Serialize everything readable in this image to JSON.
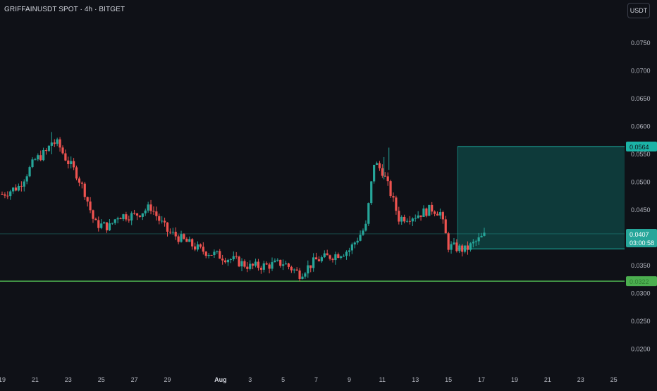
{
  "header": {
    "title": "GRIFFAINUSDT SPOT · 4h · BITGET",
    "currency_button": "USDT"
  },
  "colors": {
    "background": "#0f1117",
    "up": "#26a69a",
    "down": "#ef5350",
    "support_line": "#4caf50",
    "target_zone_fill": "#0f5c58",
    "target_zone_border": "#1bb3a6"
  },
  "price_labels": {
    "target": "0.0564",
    "current": "0.0407",
    "countdown": "03:00:58",
    "support": "0.0322"
  },
  "chart_data": {
    "type": "candlestick",
    "title": "GRIFFAINUSDT SPOT · 4h · BITGET",
    "y_axis": {
      "ticks": [
        "0.0750",
        "0.0700",
        "0.0650",
        "0.0600",
        "0.0550",
        "0.0500",
        "0.0450",
        "0.0350",
        "0.0300",
        "0.0250",
        "0.0200"
      ],
      "range": [
        0.0172,
        0.08
      ]
    },
    "x_axis": {
      "ticks": [
        "19",
        "21",
        "23",
        "25",
        "27",
        "29",
        "Aug",
        "3",
        "5",
        "7",
        "9",
        "11",
        "13",
        "15",
        "17",
        "19",
        "21",
        "23",
        "25"
      ]
    },
    "price_path": [
      {
        "d": "Jul 19",
        "p": 0.0478
      },
      {
        "d": "Jul 20",
        "p": 0.0492
      },
      {
        "d": "Jul 21",
        "p": 0.054
      },
      {
        "d": "Jul 21.7",
        "p": 0.0555
      },
      {
        "d": "Jul 22",
        "p": 0.0572
      },
      {
        "d": "Jul 22.4",
        "p": 0.0568
      },
      {
        "d": "Jul 22.8",
        "p": 0.0545
      },
      {
        "d": "Jul 23.5",
        "p": 0.0515
      },
      {
        "d": "Jul 24",
        "p": 0.0482
      },
      {
        "d": "Jul 24.6",
        "p": 0.0425
      },
      {
        "d": "Jul 25.5",
        "p": 0.042
      },
      {
        "d": "Jul 26",
        "p": 0.044
      },
      {
        "d": "Jul 27",
        "p": 0.044
      },
      {
        "d": "Jul 28",
        "p": 0.0455
      },
      {
        "d": "Jul 28.5",
        "p": 0.0432
      },
      {
        "d": "Jul 29",
        "p": 0.0412
      },
      {
        "d": "Jul 30",
        "p": 0.0395
      },
      {
        "d": "Jul 31",
        "p": 0.0378
      },
      {
        "d": "Aug 2",
        "p": 0.036
      },
      {
        "d": "Aug 3",
        "p": 0.0348
      },
      {
        "d": "Aug 4",
        "p": 0.035
      },
      {
        "d": "Aug 5",
        "p": 0.0355
      },
      {
        "d": "Aug 6",
        "p": 0.0335
      },
      {
        "d": "Aug 7",
        "p": 0.036
      },
      {
        "d": "Aug 8",
        "p": 0.0368
      },
      {
        "d": "Aug 9",
        "p": 0.0378
      },
      {
        "d": "Aug 10",
        "p": 0.042
      },
      {
        "d": "Aug 10.5",
        "p": 0.0535
      },
      {
        "d": "Aug 11",
        "p": 0.052
      },
      {
        "d": "Aug 11.5",
        "p": 0.048
      },
      {
        "d": "Aug 12",
        "p": 0.0435
      },
      {
        "d": "Aug 13",
        "p": 0.044
      },
      {
        "d": "Aug 14",
        "p": 0.0452
      },
      {
        "d": "Aug 14.5",
        "p": 0.0445
      },
      {
        "d": "Aug 15",
        "p": 0.0385
      },
      {
        "d": "Aug 15.5",
        "p": 0.0382
      },
      {
        "d": "Aug 16",
        "p": 0.0378
      },
      {
        "d": "Aug 17",
        "p": 0.04
      },
      {
        "d": "Aug 17.3",
        "p": 0.0407
      }
    ],
    "annotations": [
      {
        "type": "price_line",
        "label": "0.0407"
      },
      {
        "type": "support_line",
        "label": "0.0322"
      },
      {
        "type": "target_zone",
        "top": 0.0564,
        "bottom": 0.038
      }
    ]
  }
}
